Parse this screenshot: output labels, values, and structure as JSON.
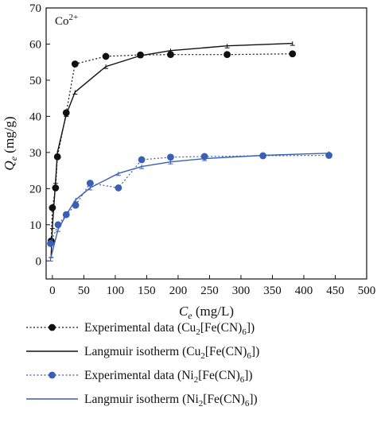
{
  "chart_data": {
    "type": "line",
    "annotation": "Co2+",
    "xlabel": "Ce (mg/L)",
    "ylabel": "Qe (mg/g)",
    "xlim": [
      -10,
      500
    ],
    "ylim": [
      -5,
      70
    ],
    "xticks": [
      0,
      50,
      100,
      150,
      200,
      250,
      300,
      350,
      400,
      450,
      500
    ],
    "yticks": [
      0,
      10,
      20,
      30,
      40,
      50,
      60,
      70
    ],
    "grid": false,
    "legend_position": "below",
    "series": [
      {
        "name": "Experimental data (Cu2[Fe(CN)6])",
        "style": "dotted-markers",
        "color": "#111111",
        "x": [
          -2,
          0,
          5,
          8,
          22,
          36,
          85,
          140,
          188,
          278,
          382
        ],
        "y": [
          5.5,
          14.7,
          20.2,
          28.8,
          41.0,
          54.5,
          56.6,
          57.0,
          57.1,
          57.1,
          57.3
        ]
      },
      {
        "name": "Langmuir isotherm (Cu2[Fe(CN)6])",
        "style": "solid",
        "color": "#111111",
        "x": [
          -2,
          0,
          5,
          8,
          22,
          36,
          85,
          140,
          188,
          278,
          382
        ],
        "y": [
          1.5,
          9.5,
          22.0,
          30.0,
          40.5,
          46.7,
          53.8,
          56.8,
          58.2,
          59.5,
          60.2
        ]
      },
      {
        "name": "Experimental data (Ni2[Fe(CN)6])",
        "style": "dotted-markers",
        "color": "#3a5fb5",
        "x": [
          -3,
          9,
          22,
          37,
          60,
          105,
          142,
          188,
          242,
          335,
          440
        ],
        "y": [
          4.8,
          10.0,
          12.8,
          15.4,
          21.5,
          20.2,
          28.0,
          28.7,
          28.9,
          29.1,
          29.2
        ]
      },
      {
        "name": "Langmuir isotherm (Ni2[Fe(CN)6])",
        "style": "solid",
        "color": "#3a5fb5",
        "x": [
          -3,
          9,
          22,
          37,
          60,
          105,
          142,
          188,
          242,
          335,
          440
        ],
        "y": [
          0.5,
          8.7,
          12.8,
          16.9,
          20.2,
          24.2,
          26.1,
          27.4,
          28.3,
          29.2,
          29.8
        ]
      }
    ]
  }
}
